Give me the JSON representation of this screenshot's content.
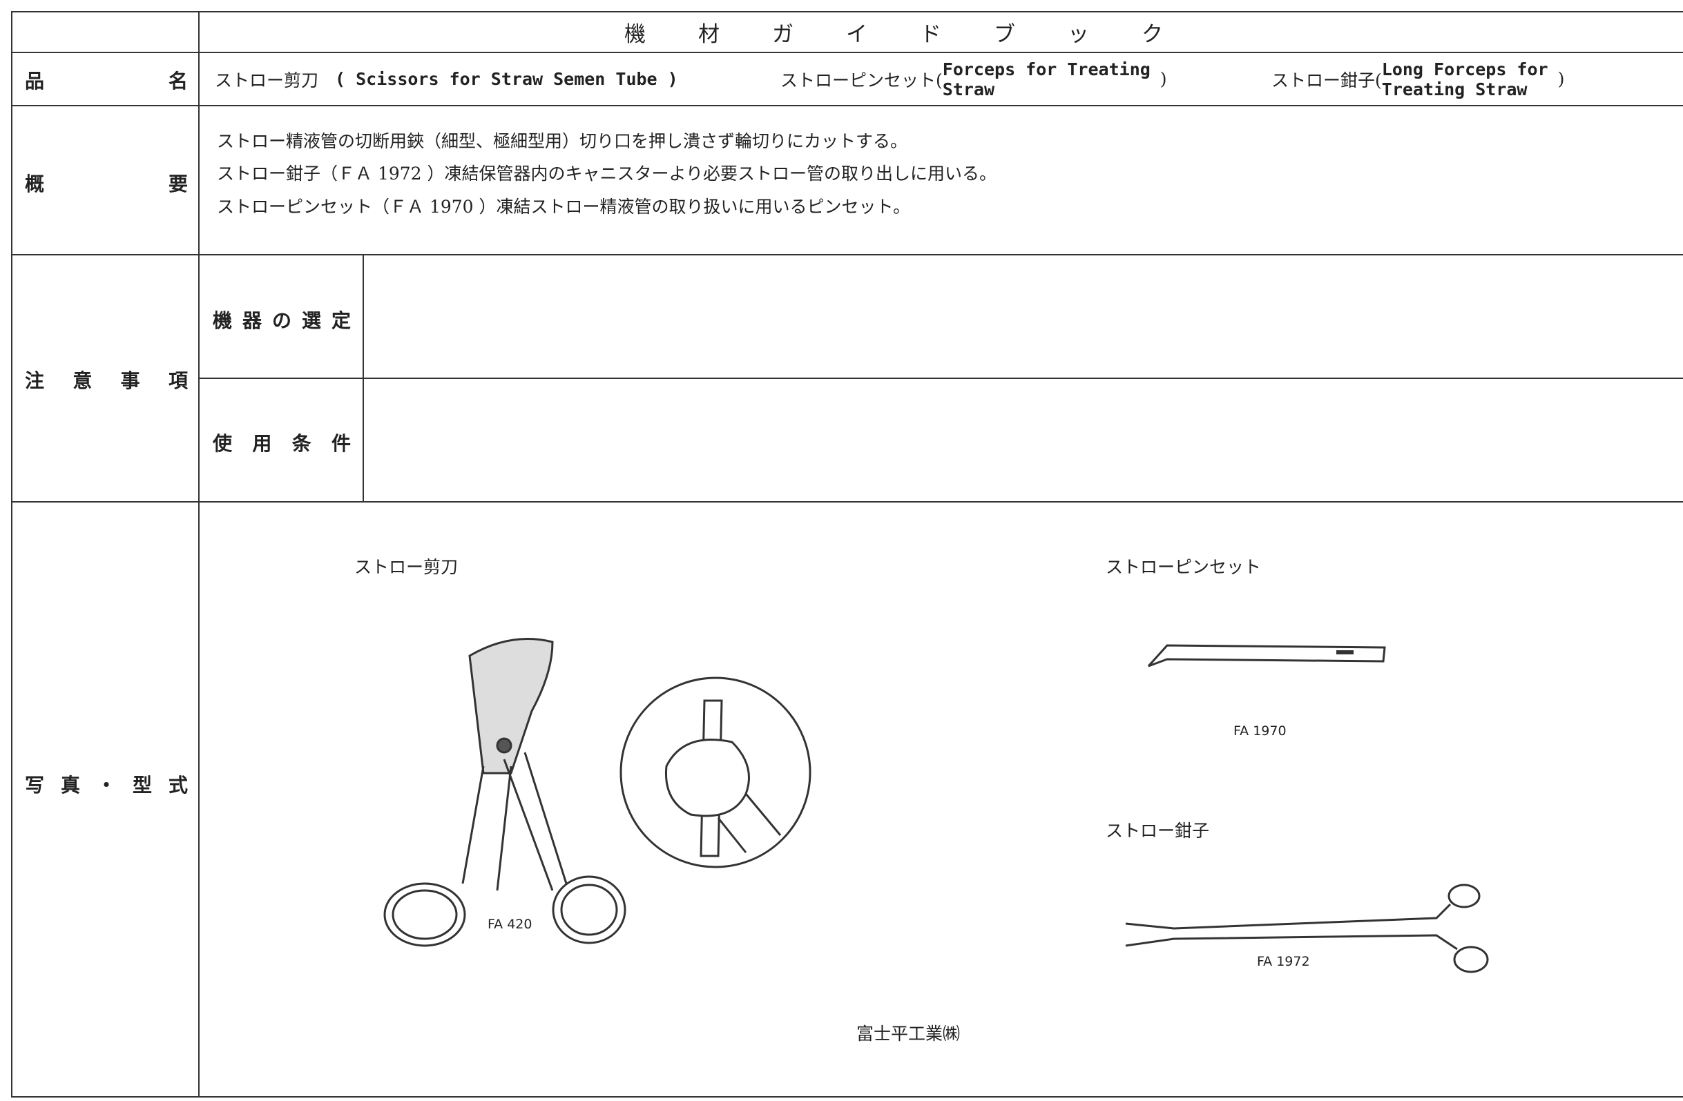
{
  "header": {
    "title": "機材ガイドブック"
  },
  "product_name": {
    "label": "品名",
    "items": [
      {
        "name": "ストロー剪刀",
        "english_lines": [
          "( Scissors for Straw Semen Tube )"
        ]
      },
      {
        "name": "ストローピンセット(",
        "english_lines": [
          "Forceps for Treating",
          "Straw"
        ],
        "close": ")"
      },
      {
        "name": "ストロー鉗子(",
        "english_lines": [
          "Long Forceps for",
          "Treating Straw"
        ],
        "close": ")"
      }
    ]
  },
  "summary": {
    "label": "概要",
    "lines": [
      "ストロー精液管の切断用鋏（細型、極細型用）切り口を押し潰さず輪切りにカットする。",
      "ストロー鉗子（ＦＡ 1972 ）凍結保管器内のキャニスターより必要ストロー管の取り出しに用いる。",
      "ストローピンセット（ＦＡ 1970 ）凍結ストロー精液管の取り扱いに用いるピンセット。"
    ]
  },
  "notes": {
    "label": "注意事項",
    "selection": {
      "label": "機器の選定"
    },
    "conditions": {
      "label": "使用条件"
    }
  },
  "photos": {
    "label": "写真・型式",
    "scissors": {
      "caption": "ストロー剪刀",
      "model": "FA 420"
    },
    "tweezers": {
      "caption": "ストローピンセット",
      "model": "FA 1970"
    },
    "forceps": {
      "caption": "ストロー鉗子",
      "model": "FA 1972"
    },
    "maker": "富士平工業㈱"
  }
}
